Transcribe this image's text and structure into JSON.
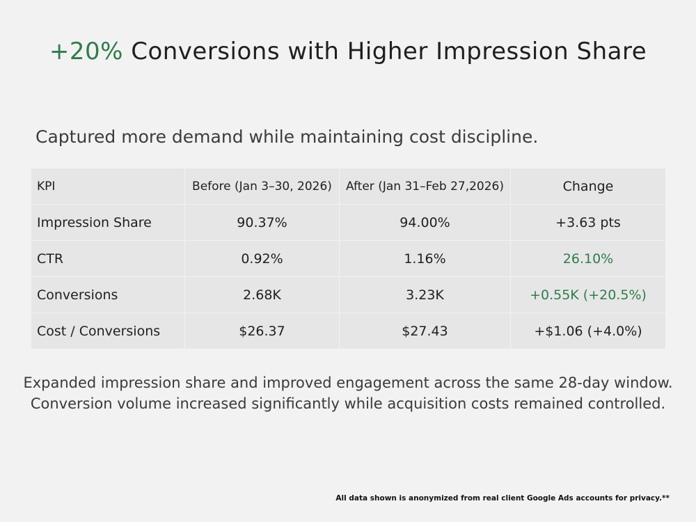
{
  "title": {
    "accent": "+20%",
    "rest": " Conversions with Higher Impression Share",
    "accent_color": "#2e7d4a"
  },
  "subtitle": "Captured more demand while maintaining cost discipline.",
  "table": {
    "headers": [
      "KPI",
      "Before (Jan 3–30, 2026)",
      "After (Jan 31–Feb 27,2026)",
      "Change"
    ],
    "rows": [
      {
        "kpi": "Impression Share",
        "before": "90.37%",
        "after": "94.00%",
        "change": "+3.63 pts",
        "change_highlight": false
      },
      {
        "kpi": "CTR",
        "before": "0.92%",
        "after": "1.16%",
        "change": "26.10%",
        "change_highlight": true
      },
      {
        "kpi": "Conversions",
        "before": "2.68K",
        "after": "3.23K",
        "change": "+0.55K (+20.5%)",
        "change_highlight": true
      },
      {
        "kpi": "Cost / Conversions",
        "before": "$26.37",
        "after": "$27.43",
        "change": "+$1.06 (+4.0%)",
        "change_highlight": false
      }
    ]
  },
  "note": {
    "line1": "Expanded impression share and improved engagement across the same 28-day window.",
    "line2": "Conversion volume increased significantly while acquisition costs remained controlled."
  },
  "footer": "All data shown is anonymized from real client Google Ads accounts for privacy.**"
}
